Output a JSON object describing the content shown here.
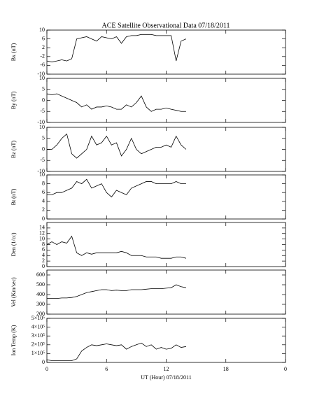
{
  "title": "ACE Satellite Observational Data   07/18/2011",
  "chart_data": [
    {
      "type": "line",
      "ylabel": "Bx (nT)",
      "ylim": [
        -10,
        10
      ],
      "yticks": [
        -10,
        -6,
        -2,
        2,
        6,
        10
      ],
      "xlim": [
        0,
        24
      ],
      "x": [
        0,
        0.5,
        1,
        1.5,
        2,
        2.5,
        3,
        3.5,
        4,
        4.5,
        5,
        5.5,
        6,
        6.5,
        7,
        7.5,
        8,
        8.5,
        9,
        9.5,
        10,
        10.5,
        11,
        11.5,
        12,
        12.5,
        13,
        13.5,
        14
      ],
      "values": [
        -4,
        -4.5,
        -4,
        -3.5,
        -4,
        -3,
        6,
        6.5,
        7,
        6,
        5,
        7,
        6.5,
        6,
        7,
        4,
        7,
        7.5,
        7.5,
        8,
        8,
        8,
        7.5,
        7.5,
        7.5,
        7.5,
        -4,
        5,
        6
      ],
      "color": "#000000"
    },
    {
      "type": "line",
      "ylabel": "By (nT)",
      "ylim": [
        -10,
        10
      ],
      "yticks": [
        -10,
        -5,
        0,
        5,
        10
      ],
      "xlim": [
        0,
        24
      ],
      "x": [
        0,
        0.5,
        1,
        1.5,
        2,
        2.5,
        3,
        3.5,
        4,
        4.5,
        5,
        5.5,
        6,
        6.5,
        7,
        7.5,
        8,
        8.5,
        9,
        9.5,
        10,
        10.5,
        11,
        11.5,
        12,
        12.5,
        13,
        13.5,
        14
      ],
      "values": [
        3,
        2.5,
        3,
        2,
        1,
        0,
        -1,
        -3,
        -2,
        -4,
        -3,
        -3,
        -2.5,
        -3,
        -4,
        -4,
        -2,
        -3,
        -1,
        2,
        -3,
        -5,
        -4,
        -4,
        -3.5,
        -4,
        -4.5,
        -5,
        -5
      ],
      "color": "#000000"
    },
    {
      "type": "line",
      "ylabel": "Bz (nT)",
      "ylim": [
        -10,
        10
      ],
      "yticks": [
        -10,
        -5,
        0,
        5,
        10
      ],
      "xlim": [
        0,
        24
      ],
      "x": [
        0,
        0.5,
        1,
        1.5,
        2,
        2.5,
        3,
        3.5,
        4,
        4.5,
        5,
        5.5,
        6,
        6.5,
        7,
        7.5,
        8,
        8.5,
        9,
        9.5,
        10,
        10.5,
        11,
        11.5,
        12,
        12.5,
        13,
        13.5,
        14
      ],
      "values": [
        0,
        0,
        2,
        5,
        7,
        -2,
        -4,
        -2,
        0,
        6,
        2,
        3,
        6,
        2,
        3,
        -3,
        0,
        5,
        0,
        -2,
        -1,
        0,
        1,
        1,
        2,
        1,
        6,
        2,
        0
      ],
      "color": "#000000"
    },
    {
      "type": "line",
      "ylabel": "Bt (nT)",
      "ylim": [
        0,
        10
      ],
      "yticks": [
        0,
        2,
        4,
        6,
        8,
        10
      ],
      "xlim": [
        0,
        24
      ],
      "x": [
        0,
        0.5,
        1,
        1.5,
        2,
        2.5,
        3,
        3.5,
        4,
        4.5,
        5,
        5.5,
        6,
        6.5,
        7,
        7.5,
        8,
        8.5,
        9,
        9.5,
        10,
        10.5,
        11,
        11.5,
        12,
        12.5,
        13,
        13.5,
        14
      ],
      "values": [
        5.5,
        5.5,
        6,
        6,
        6.5,
        7,
        8.5,
        8,
        9,
        7,
        7.5,
        8,
        6,
        5,
        6.5,
        6,
        5.5,
        7,
        7.5,
        8,
        8.5,
        8.5,
        8,
        8,
        8,
        8,
        8.5,
        8,
        8
      ],
      "color": "#000000"
    },
    {
      "type": "line",
      "ylabel": "Den (1/cc)",
      "ylim": [
        0,
        16
      ],
      "yticks": [
        0,
        2,
        4,
        6,
        8,
        10,
        12,
        14
      ],
      "xlim": [
        0,
        24
      ],
      "x": [
        0,
        0.5,
        1,
        1.5,
        2,
        2.5,
        3,
        3.5,
        4,
        4.5,
        5,
        5.5,
        6,
        6.5,
        7,
        7.5,
        8,
        8.5,
        9,
        9.5,
        10,
        10.5,
        11,
        11.5,
        12,
        12.5,
        13,
        13.5,
        14
      ],
      "values": [
        8,
        9,
        8,
        9,
        8.5,
        11,
        5,
        4,
        5,
        4.5,
        5,
        5,
        5,
        5,
        5,
        5.5,
        5,
        4,
        4,
        4,
        3.5,
        3.5,
        3.5,
        3,
        3,
        3,
        3.5,
        3.5,
        3
      ],
      "color": "#000000"
    },
    {
      "type": "line",
      "ylabel": "Vel (Km/sec)",
      "ylim": [
        200,
        650
      ],
      "yticks": [
        200,
        300,
        400,
        500,
        600
      ],
      "xlim": [
        0,
        24
      ],
      "x": [
        0,
        0.5,
        1,
        1.5,
        2,
        2.5,
        3,
        3.5,
        4,
        4.5,
        5,
        5.5,
        6,
        6.5,
        7,
        7.5,
        8,
        8.5,
        9,
        9.5,
        10,
        10.5,
        11,
        11.5,
        12,
        12.5,
        13,
        13.5,
        14
      ],
      "values": [
        360,
        360,
        360,
        365,
        365,
        370,
        380,
        400,
        420,
        430,
        440,
        450,
        450,
        440,
        445,
        440,
        440,
        450,
        450,
        450,
        455,
        460,
        460,
        460,
        465,
        470,
        500,
        480,
        470
      ],
      "color": "#000000"
    },
    {
      "type": "line",
      "ylabel": "Ion Temp (K)",
      "ylim": [
        0,
        500000
      ],
      "yticks": [
        0,
        {
          "value": 100000,
          "label": "1×10⁵"
        },
        {
          "value": 200000,
          "label": "2×10⁵"
        },
        {
          "value": 300000,
          "label": "3×10⁵"
        },
        {
          "value": 400000,
          "label": "4×10⁵"
        },
        {
          "value": 500000,
          "label": "5×10⁵"
        }
      ],
      "xlim": [
        0,
        24
      ],
      "xticks": [
        0,
        6,
        12,
        18,
        {
          "value": 24,
          "label": "0"
        }
      ],
      "xlabel": "UT (Hour)  07/18/2011",
      "x": [
        0,
        0.5,
        1,
        1.5,
        2,
        2.5,
        3,
        3.5,
        4,
        4.5,
        5,
        5.5,
        6,
        6.5,
        7,
        7.5,
        8,
        8.5,
        9,
        9.5,
        10,
        10.5,
        11,
        11.5,
        12,
        12.5,
        13,
        13.5,
        14
      ],
      "values": [
        30000,
        20000,
        20000,
        20000,
        20000,
        20000,
        40000,
        130000,
        170000,
        200000,
        190000,
        200000,
        210000,
        200000,
        190000,
        200000,
        150000,
        180000,
        200000,
        220000,
        180000,
        200000,
        150000,
        170000,
        150000,
        160000,
        200000,
        170000,
        180000
      ],
      "color": "#000000"
    }
  ]
}
